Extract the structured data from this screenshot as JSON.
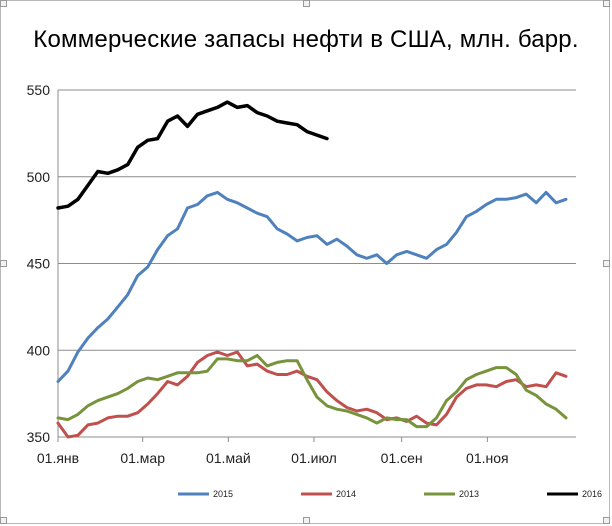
{
  "chart_data": {
    "type": "line",
    "title": "Коммерческие запасы нефти в США, млн. барр.",
    "xlabel": "",
    "ylabel": "",
    "ylim": [
      350,
      550
    ],
    "yticks": [
      350,
      400,
      450,
      500,
      550
    ],
    "xlim": [
      0,
      52
    ],
    "xtick_labels": [
      {
        "x": 0,
        "label": "01.янв"
      },
      {
        "x": 8.5,
        "label": "01.мар"
      },
      {
        "x": 17.1,
        "label": "01.май"
      },
      {
        "x": 25.7,
        "label": "01.июл"
      },
      {
        "x": 34.5,
        "label": "01.сен"
      },
      {
        "x": 43.1,
        "label": "01.ноя"
      }
    ],
    "grid": "horizontal",
    "legend_position": "bottom",
    "series": [
      {
        "name": "2015",
        "color": "#4f81bd",
        "values": [
          382,
          388,
          399,
          407,
          413,
          418,
          425,
          432,
          443,
          448,
          458,
          466,
          470,
          482,
          484,
          489,
          491,
          487,
          485,
          482,
          479,
          477,
          470,
          467,
          463,
          465,
          466,
          461,
          464,
          460,
          455,
          453,
          455,
          450,
          455,
          457,
          455,
          453,
          458,
          461,
          468,
          477,
          480,
          484,
          487,
          487,
          488,
          490,
          485,
          491,
          485,
          487
        ]
      },
      {
        "name": "2014",
        "color": "#c0504d",
        "values": [
          358,
          350,
          351,
          357,
          358,
          361,
          362,
          362,
          364,
          369,
          375,
          382,
          380,
          385,
          393,
          397,
          399,
          397,
          399,
          391,
          392,
          388,
          386,
          386,
          388,
          385,
          383,
          376,
          371,
          367,
          365,
          366,
          364,
          360,
          361,
          359,
          362,
          358,
          357,
          363,
          373,
          378,
          380,
          380,
          379,
          382,
          383,
          379,
          380,
          379,
          387,
          385
        ]
      },
      {
        "name": "2013",
        "color": "#77933c",
        "values": [
          361,
          360,
          363,
          368,
          371,
          373,
          375,
          378,
          382,
          384,
          383,
          385,
          387,
          387,
          387,
          388,
          395,
          395,
          394,
          394,
          397,
          391,
          393,
          394,
          394,
          383,
          373,
          368,
          366,
          365,
          363,
          361,
          358,
          361,
          360,
          360,
          356,
          356,
          361,
          371,
          376,
          383,
          386,
          388,
          390,
          390,
          386,
          377,
          374,
          369,
          366,
          361
        ]
      },
      {
        "name": "2016",
        "color": "#000000",
        "values": [
          482,
          483,
          487,
          495,
          503,
          502,
          504,
          507,
          517,
          521,
          522,
          532,
          535,
          529,
          536,
          538,
          540,
          543,
          540,
          541,
          537,
          535,
          532,
          531,
          530,
          526,
          524,
          522
        ]
      }
    ]
  }
}
